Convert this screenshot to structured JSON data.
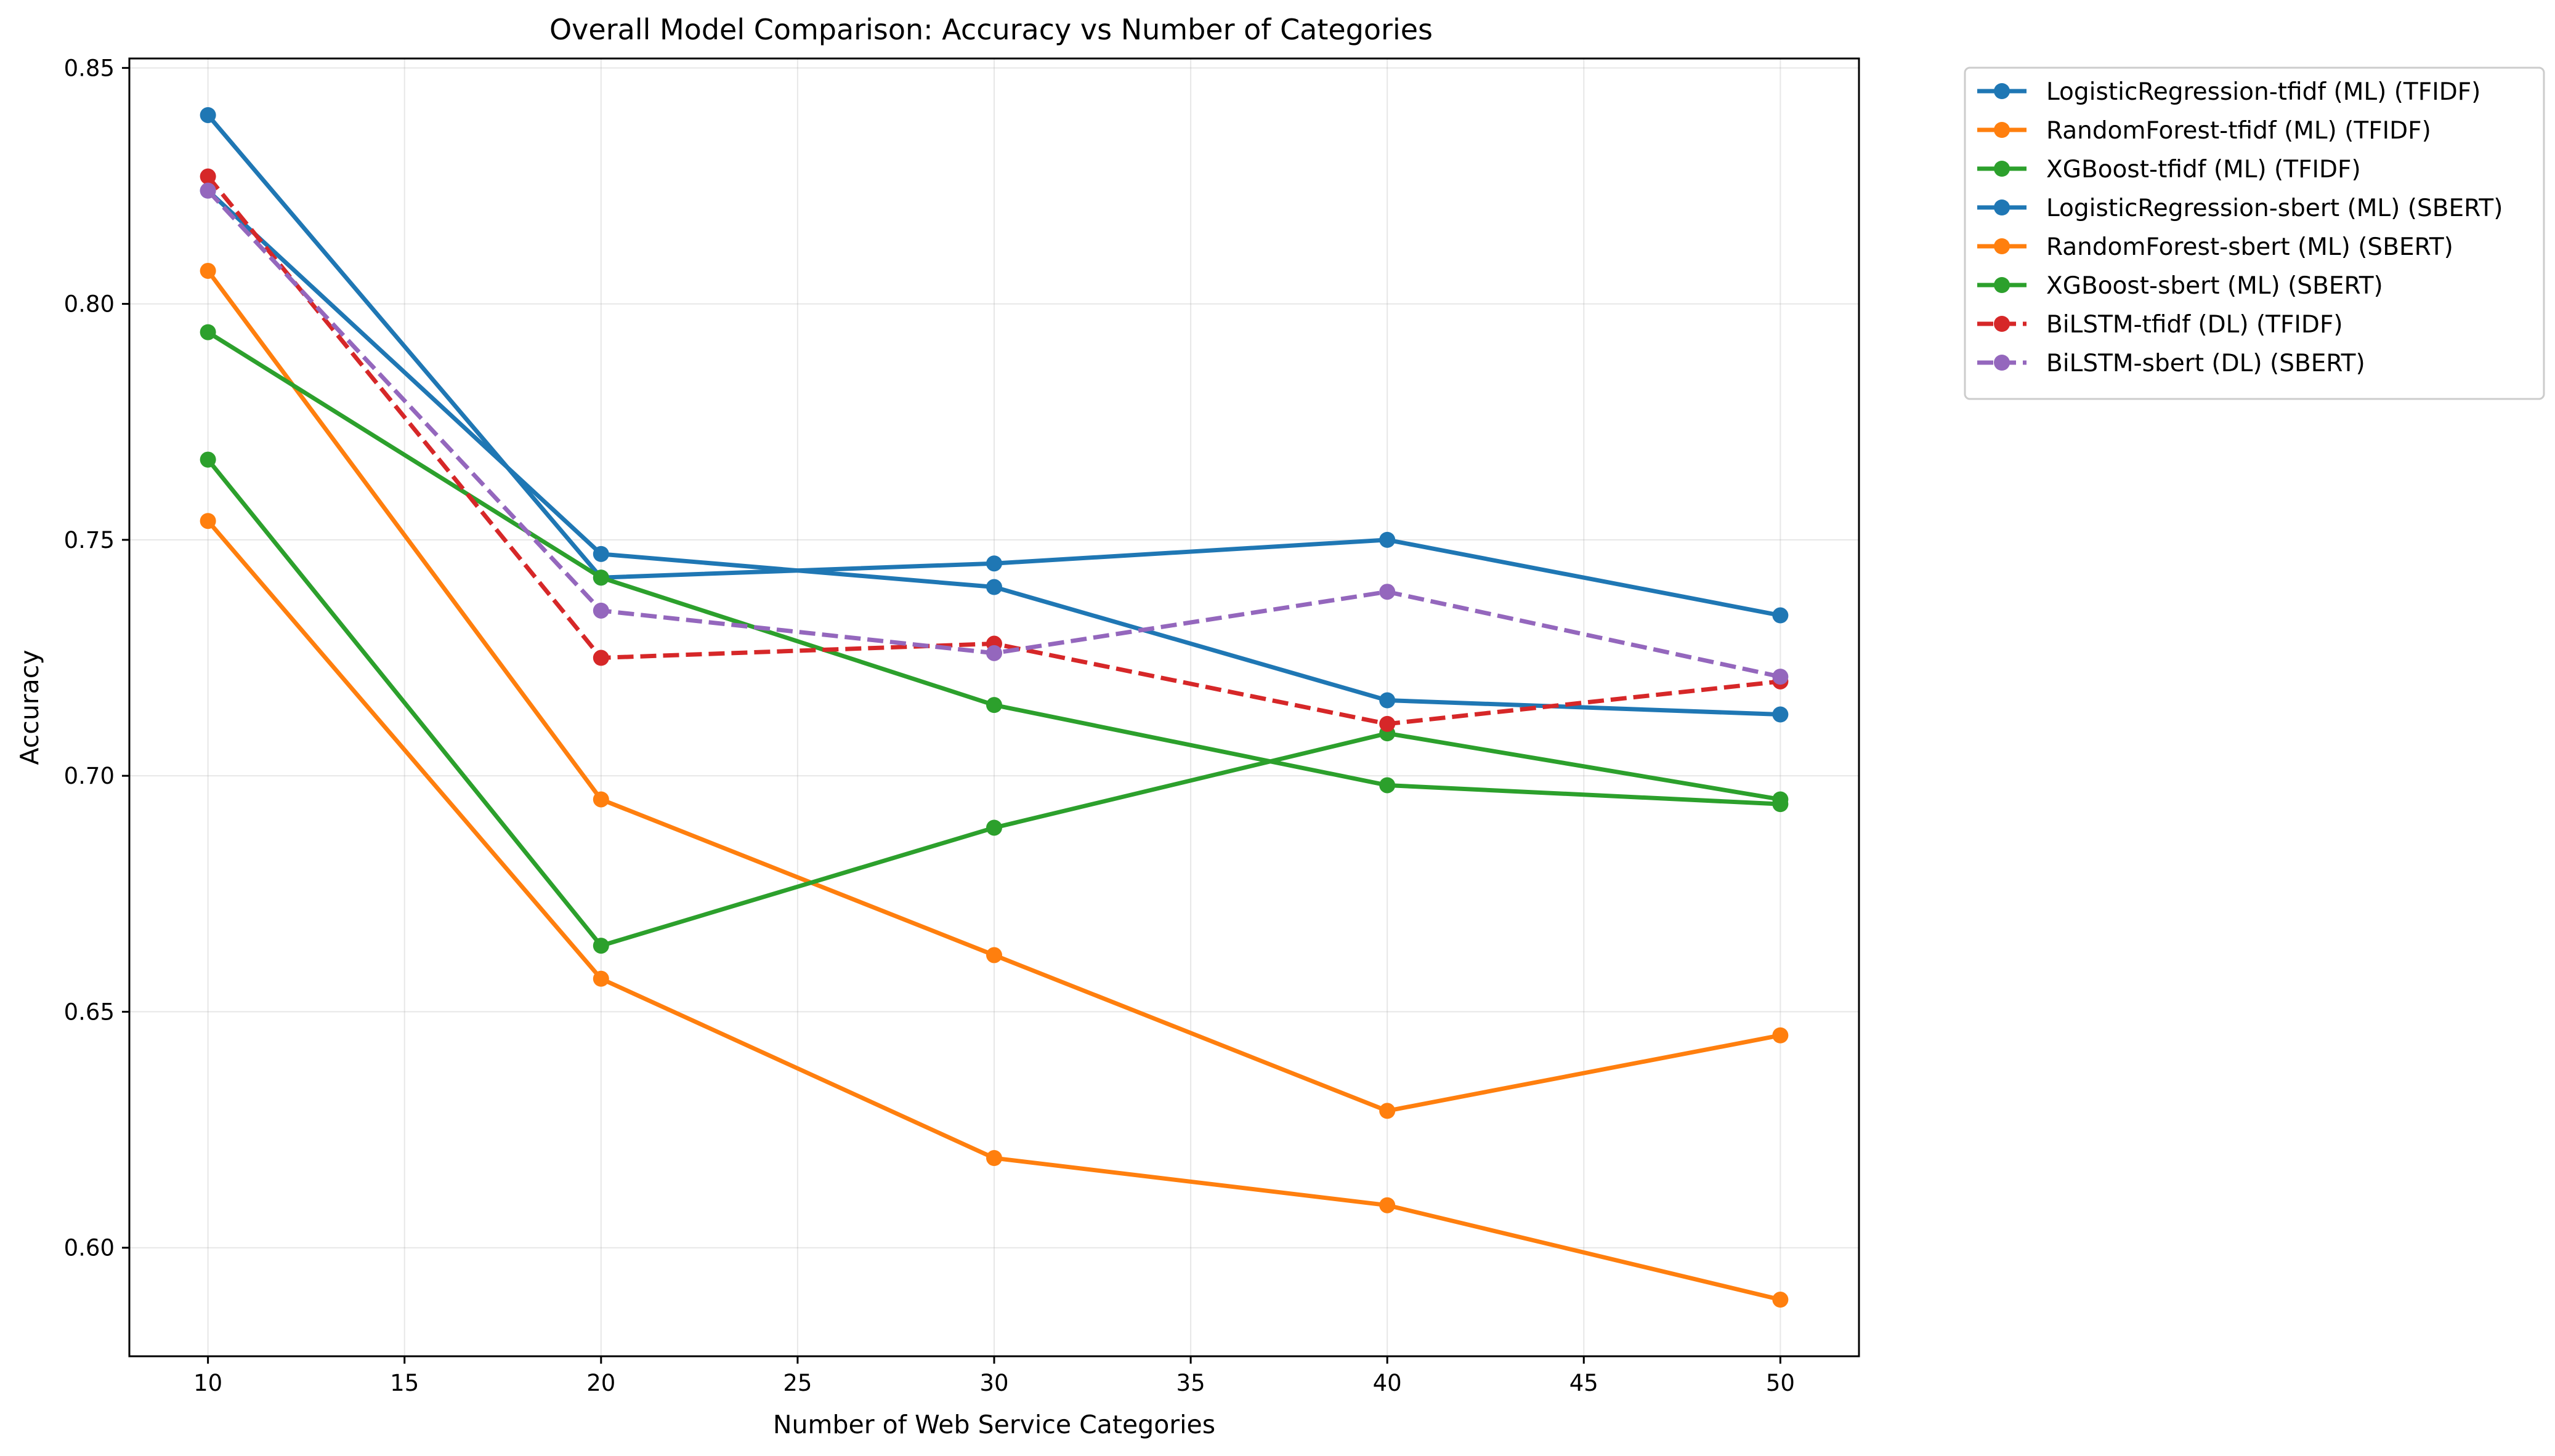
{
  "chart_data": {
    "type": "line",
    "title": "Overall Model Comparison: Accuracy vs Number of Categories",
    "xlabel": "Number of Web Service Categories",
    "ylabel": "Accuracy",
    "xlim": [
      8,
      52
    ],
    "ylim": [
      0.577,
      0.852
    ],
    "xticks": [
      10,
      15,
      20,
      25,
      30,
      35,
      40,
      45,
      50
    ],
    "yticks": [
      0.6,
      0.65,
      0.7,
      0.75,
      0.8,
      0.85
    ],
    "xtick_labels": [
      "10",
      "15",
      "20",
      "25",
      "30",
      "35",
      "40",
      "45",
      "50"
    ],
    "ytick_labels": [
      "0.60",
      "0.65",
      "0.70",
      "0.75",
      "0.80",
      "0.85"
    ],
    "grid": true,
    "legend_position": "outside-upper-right",
    "x": [
      10,
      20,
      30,
      40,
      50
    ],
    "series": [
      {
        "name": "LogisticRegression-tfidf (ML) (TFIDF)",
        "color": "#1f77b4",
        "dashed": false,
        "values": [
          0.84,
          0.742,
          0.745,
          0.75,
          0.734
        ]
      },
      {
        "name": "RandomForest-tfidf (ML) (TFIDF)",
        "color": "#ff7f0e",
        "dashed": false,
        "values": [
          0.807,
          0.695,
          0.662,
          0.629,
          0.645
        ]
      },
      {
        "name": "XGBoost-tfidf (ML) (TFIDF)",
        "color": "#2ca02c",
        "dashed": false,
        "values": [
          0.794,
          0.742,
          0.715,
          0.698,
          0.694
        ]
      },
      {
        "name": "LogisticRegression-sbert (ML) (SBERT)",
        "color": "#1f77b4",
        "dashed": false,
        "values": [
          0.824,
          0.747,
          0.74,
          0.716,
          0.713
        ]
      },
      {
        "name": "RandomForest-sbert (ML) (SBERT)",
        "color": "#ff7f0e",
        "dashed": false,
        "values": [
          0.754,
          0.657,
          0.619,
          0.609,
          0.589
        ]
      },
      {
        "name": "XGBoost-sbert (ML) (SBERT)",
        "color": "#2ca02c",
        "dashed": false,
        "values": [
          0.767,
          0.664,
          0.689,
          0.709,
          0.695
        ]
      },
      {
        "name": "BiLSTM-tfidf (DL) (TFIDF)",
        "color": "#d62728",
        "dashed": true,
        "values": [
          0.827,
          0.725,
          0.728,
          0.711,
          0.72
        ]
      },
      {
        "name": "BiLSTM-sbert (DL) (SBERT)",
        "color": "#9467bd",
        "dashed": true,
        "values": [
          0.824,
          0.735,
          0.726,
          0.739,
          0.721
        ]
      }
    ]
  }
}
